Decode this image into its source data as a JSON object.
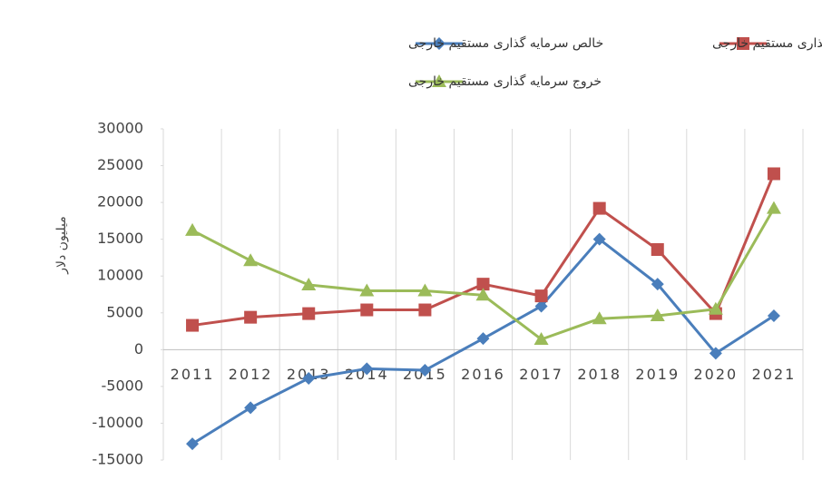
{
  "chart_data": {
    "type": "line",
    "y_label": "میلیون دلار",
    "categories": [
      "2011",
      "2012",
      "2013",
      "2014",
      "2015",
      "2016",
      "2017",
      "2018",
      "2019",
      "2020",
      "2021"
    ],
    "series": [
      {
        "name": "خالص سرمایه گذاری مستقیم خارجی",
        "color": "#4a7ebb",
        "marker": "diamond",
        "values": [
          -12800,
          -7900,
          -3900,
          -2600,
          -2800,
          1500,
          5900,
          15000,
          8900,
          -500,
          4600
        ]
      },
      {
        "name": "ورود سرمایه گذاری مستقیم خارجی",
        "color": "#c0504d",
        "marker": "square",
        "values": [
          3300,
          4400,
          4900,
          5400,
          5400,
          8900,
          7300,
          19200,
          13600,
          4900,
          23900
        ]
      },
      {
        "name": "خروج سرمایه گذاری مستقیم خارجی",
        "color": "#9bbb59",
        "marker": "triangle",
        "values": [
          16200,
          12100,
          8800,
          8000,
          8000,
          7400,
          1400,
          4200,
          4600,
          5500,
          19200
        ]
      }
    ],
    "ylim": [
      -15000,
      30000
    ],
    "yticks": [
      -15000,
      -10000,
      -5000,
      0,
      5000,
      10000,
      15000,
      20000,
      25000,
      30000
    ],
    "grid": "vertical"
  }
}
